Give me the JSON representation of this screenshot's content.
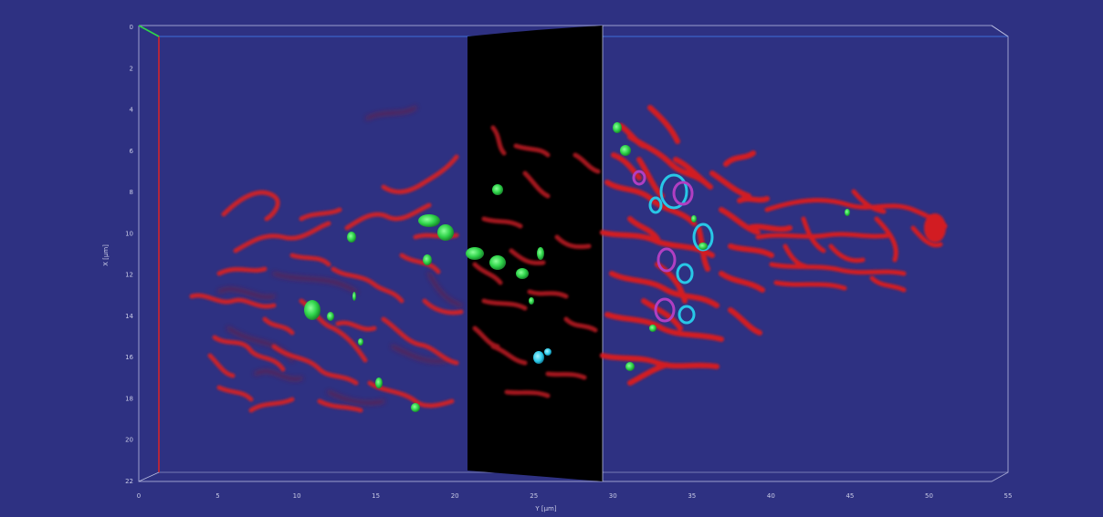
{
  "viewer": {
    "background_color": "#2e3182",
    "box_color": "#b8bce0",
    "colors": {
      "mito": "#d21a22",
      "mito_dark": "#7e1a30",
      "vesicle": "#2fd44a",
      "cyan": "#28c7e6",
      "magenta": "#b03fc2",
      "slice_plane": "#000000"
    }
  },
  "axes": {
    "x_axis": {
      "title": "Y [µm]",
      "ticks": [
        "0",
        "5",
        "10",
        "15",
        "20",
        "25",
        "30",
        "35",
        "40",
        "45",
        "50",
        "55"
      ]
    },
    "y_axis": {
      "title": "X [µm]",
      "ticks": [
        "0",
        "2",
        "4",
        "6",
        "8",
        "10",
        "12",
        "14",
        "16",
        "18",
        "20",
        "22"
      ]
    }
  },
  "icons": {
    "corner_axis": "axis-triad-icon"
  }
}
